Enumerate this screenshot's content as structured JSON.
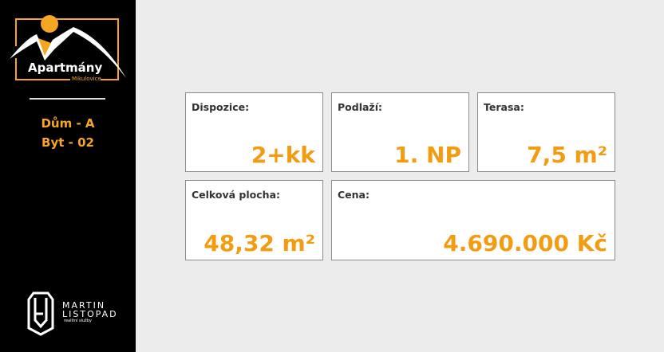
{
  "brand": {
    "name": "Apartmány",
    "sub": "Mikulovice",
    "accent": "#f39c12"
  },
  "unit": {
    "house": "Dům - A",
    "flat": "Byt - 02"
  },
  "agency": {
    "line1": "MARTIN",
    "line2": "LISTOPAD",
    "tagline": "realitní služby"
  },
  "cards": [
    {
      "label": "Dispozice:",
      "value": "2+kk"
    },
    {
      "label": "Podlaží:",
      "value": "1. NP"
    },
    {
      "label": "Terasa:",
      "value": "7,5 m²"
    },
    {
      "label": "Celková plocha:",
      "value": "48,32 m²"
    },
    {
      "label": "Cena:",
      "value": "4.690.000 Kč"
    }
  ]
}
